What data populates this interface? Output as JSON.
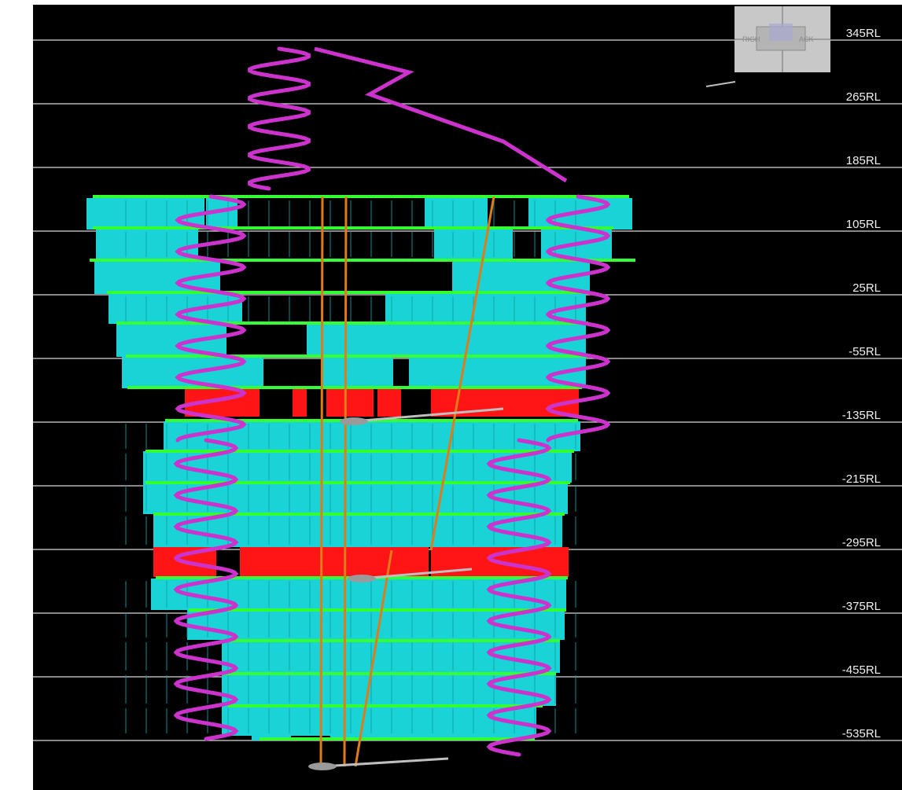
{
  "colors": {
    "background": "#000000",
    "frame": "#ffffff",
    "gridline": "#d9d9d9",
    "stope": "#19d3d6",
    "stope_dark": "#0e9fa3",
    "sill_level": "#33ff33",
    "sill_red": "#ff1515",
    "ramp": "#cc33cc",
    "shaft": "#e07b1a",
    "infrastructure": "#bfbfbf",
    "navcube_bg": "#c8c8c8"
  },
  "levels": [
    "345RL",
    "265RL",
    "185RL",
    "105RL",
    "25RL",
    "-55RL",
    "-135RL",
    "-215RL",
    "-295RL",
    "-375RL",
    "-455RL",
    "-535RL"
  ],
  "navcube": {
    "left": "RIGH",
    "right": "ACK"
  },
  "icons": {
    "navcube": "view-cube-icon"
  }
}
